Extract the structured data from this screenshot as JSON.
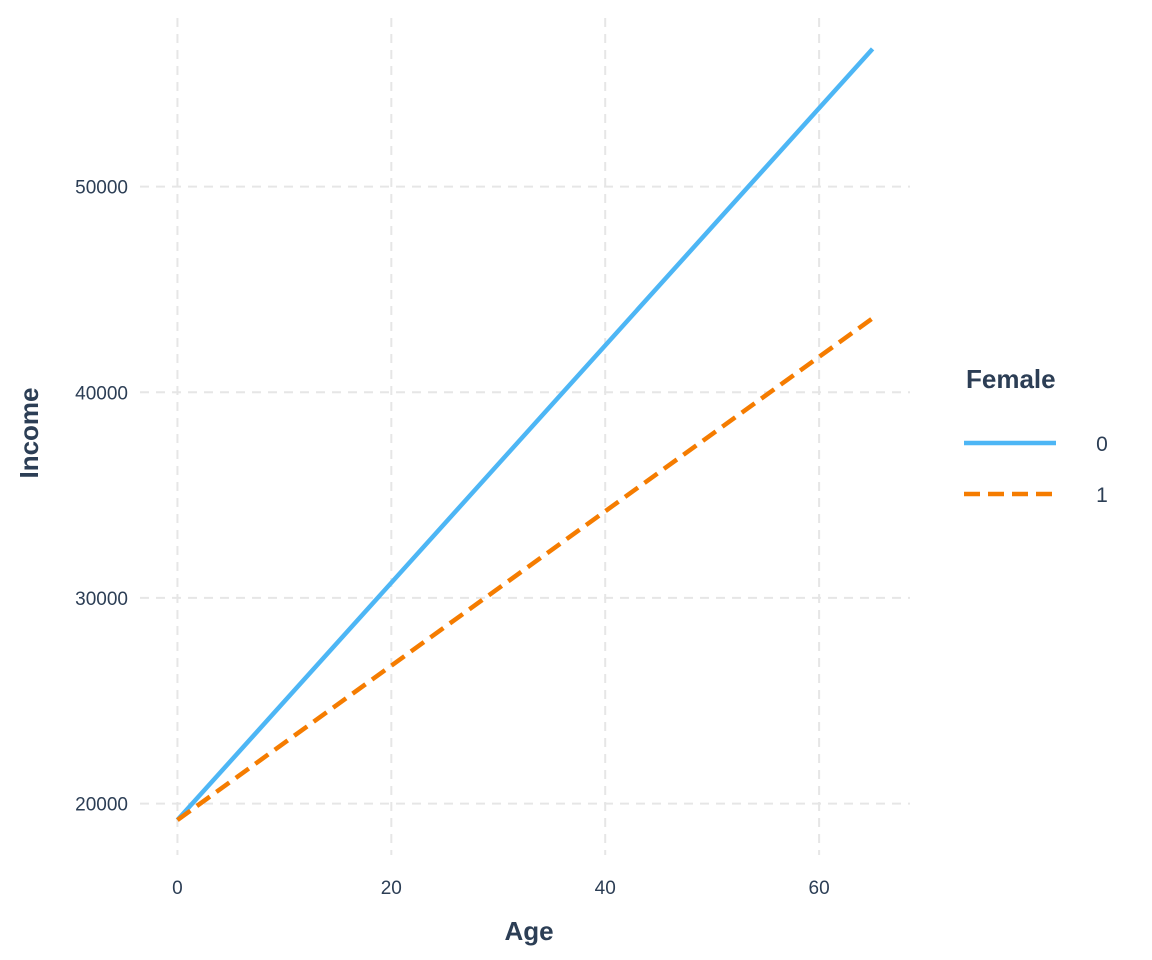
{
  "chart_data": {
    "type": "line",
    "title": "",
    "xlabel": "Age",
    "ylabel": "Income",
    "xlim": [
      -3.5,
      68.5
    ],
    "ylim": [
      17500,
      58200
    ],
    "x_ticks": [
      0,
      20,
      40,
      60
    ],
    "y_ticks": [
      20000,
      30000,
      40000,
      50000
    ],
    "x_tick_labels": [
      "0",
      "20",
      "40",
      "60"
    ],
    "y_tick_labels": [
      "20000",
      "30000",
      "40000",
      "50000"
    ],
    "grid": true,
    "legend": {
      "title": "Female",
      "position": "right"
    },
    "series": [
      {
        "name": "0",
        "color": "#4db6f5",
        "dash": "solid",
        "x": [
          0,
          65
        ],
        "y": [
          19200,
          56700
        ]
      },
      {
        "name": "1",
        "color": "#f57c00",
        "dash": "dashed",
        "x": [
          0,
          65
        ],
        "y": [
          19200,
          43600
        ]
      }
    ]
  }
}
